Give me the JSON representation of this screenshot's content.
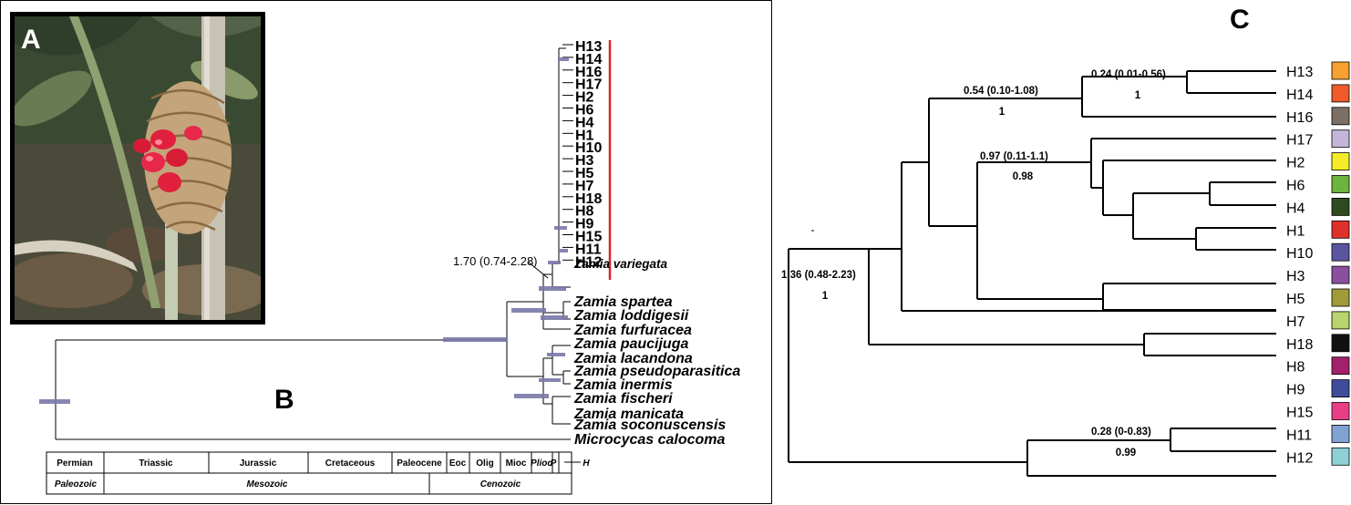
{
  "panels": {
    "a": "A",
    "b": "B",
    "c": "C"
  },
  "photo": {
    "subject": "zamia-cone-with-red-seeds"
  },
  "tree_b": {
    "haplotype_tips": [
      "H13",
      "H14",
      "H16",
      "H17",
      "H2",
      "H6",
      "H4",
      "H1",
      "H10",
      "H3",
      "H5",
      "H7",
      "H18",
      "H8",
      "H9",
      "H15",
      "H11",
      "H12"
    ],
    "species_tips": [
      "Zamia variegata",
      "Zamia spartea",
      "Zamia loddigesii",
      "Zamia furfuracea",
      "Zamia paucijuga",
      "Zamia lacandona",
      "Zamia pseudoparasitica",
      "Zamia inermis",
      "Zamia fischeri",
      "Zamia manicata",
      "Zamia soconuscensis",
      "Microcycas calocoma"
    ],
    "node_label": "1.70 (0.74-2.28)",
    "bar_color": "#d62728",
    "era_bar_color": "#7a78a8",
    "periods": [
      "Permian",
      "Triassic",
      "Jurassic",
      "Cretaceous",
      "Paleocene",
      "Eoc",
      "Olig",
      "Mioc",
      "Plioc",
      "P",
      "H"
    ],
    "eras": [
      "Paleozoic",
      "Mesozoic",
      "Cenozoic"
    ]
  },
  "tree_c": {
    "tips": [
      {
        "label": "H13",
        "color": "#f5a030"
      },
      {
        "label": "H14",
        "color": "#ee5a2a"
      },
      {
        "label": "H16",
        "color": "#7b6f66"
      },
      {
        "label": "H17",
        "color": "#c3b6d8"
      },
      {
        "label": "H2",
        "color": "#f4ec28"
      },
      {
        "label": "H6",
        "color": "#6db43c"
      },
      {
        "label": "H4",
        "color": "#2e4a1e"
      },
      {
        "label": "H1",
        "color": "#e0302a"
      },
      {
        "label": "H10",
        "color": "#5a55a0"
      },
      {
        "label": "H3",
        "color": "#8a4f9e"
      },
      {
        "label": "H5",
        "color": "#a09a3a"
      },
      {
        "label": "H7",
        "color": "#b9d36e"
      },
      {
        "label": "H18",
        "color": "#111111"
      },
      {
        "label": "H8",
        "color": "#a3206a"
      },
      {
        "label": "H9",
        "color": "#3f4c9c"
      },
      {
        "label": "H15",
        "color": "#e83e86"
      },
      {
        "label": "H11",
        "color": "#7fa2d2"
      },
      {
        "label": "H12",
        "color": "#8fd0d6"
      }
    ],
    "node_labels": [
      {
        "age": "0.24 (0.01-0.56)",
        "support": "1"
      },
      {
        "age": "0.54 (0.10-1.08)",
        "support": "1"
      },
      {
        "age": "0.97 (0.11-1.1)",
        "support": "0.98"
      },
      {
        "age": "1.36 (0.48-2.23)",
        "support": "1"
      },
      {
        "age": "0.28 (0-0.83)",
        "support": "0.99"
      }
    ]
  }
}
